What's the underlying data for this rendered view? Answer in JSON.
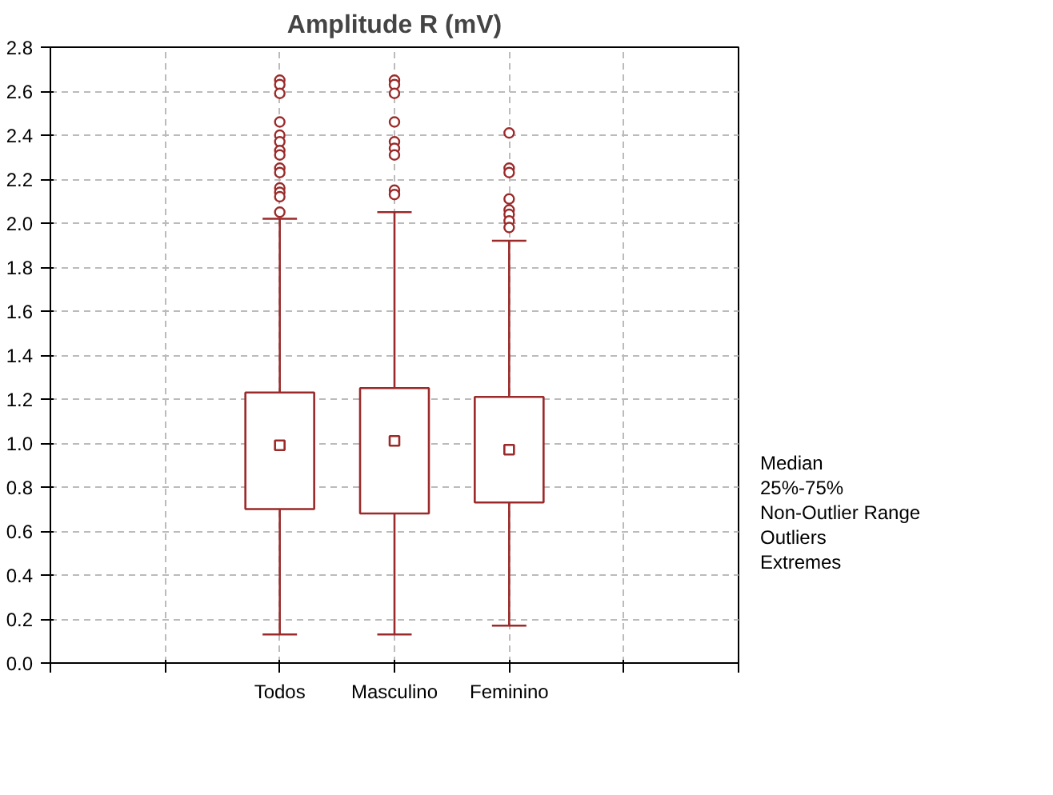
{
  "chart_data": {
    "type": "box",
    "title": "Amplitude R (mV)",
    "categories": [
      null,
      "Todos",
      "Masculino",
      "Feminino",
      null
    ],
    "color": "#9b2a2a",
    "boxes": [
      null,
      {
        "low": 0.13,
        "q1": 0.7,
        "median": 0.99,
        "q3": 1.23,
        "high": 2.02,
        "outliers": [
          2.65,
          2.63,
          2.59,
          2.46,
          2.4,
          2.37,
          2.33,
          2.31,
          2.25,
          2.23,
          2.16,
          2.14,
          2.12,
          2.05
        ]
      },
      {
        "low": 0.13,
        "q1": 0.68,
        "median": 1.01,
        "q3": 1.25,
        "high": 2.05,
        "outliers": [
          2.65,
          2.63,
          2.59,
          2.46,
          2.37,
          2.34,
          2.31,
          2.15,
          2.13
        ]
      },
      {
        "low": 0.17,
        "q1": 0.73,
        "median": 0.97,
        "q3": 1.21,
        "high": 1.92,
        "outliers": [
          2.41,
          2.25,
          2.23,
          2.11,
          2.06,
          2.04,
          2.01,
          1.98
        ]
      },
      null
    ],
    "ylim": [
      0,
      2.8
    ],
    "yticks": [
      {
        "value": 0,
        "label": "0.0"
      },
      {
        "value": 0.2,
        "label": "0.2"
      },
      {
        "value": 0.4,
        "label": "0.4"
      },
      {
        "value": 0.6,
        "label": "0.6"
      },
      {
        "value": 0.8,
        "label": "0.8"
      },
      {
        "value": 1.0,
        "label": "1.0"
      },
      {
        "value": 1.2,
        "label": "1.2"
      },
      {
        "value": 1.4,
        "label": "1.4"
      },
      {
        "value": 1.6,
        "label": "1.6"
      },
      {
        "value": 1.8,
        "label": "1.8"
      },
      {
        "value": 2.0,
        "label": "2.0"
      },
      {
        "value": 2.2,
        "label": "2.2"
      },
      {
        "value": 2.4,
        "label": "2.4"
      },
      {
        "value": 2.6,
        "label": "2.6"
      },
      {
        "value": 2.8,
        "label": "2.8"
      }
    ],
    "grid": true,
    "annotations": [
      "Median",
      "25%-75%",
      "Non-Outlier Range",
      "Outliers",
      "Extremes"
    ]
  }
}
